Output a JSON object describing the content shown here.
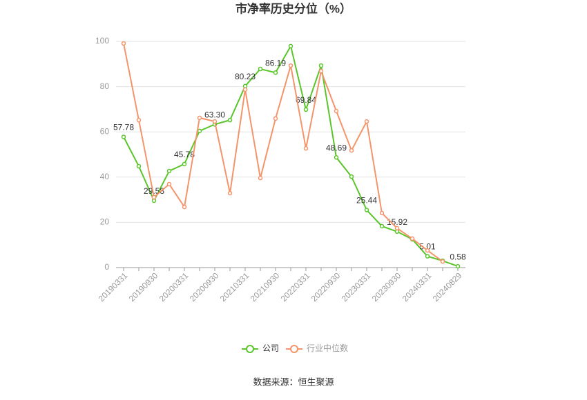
{
  "chart_data": {
    "type": "line",
    "title": "市净率历史分位（%）",
    "categories": [
      "20190331",
      null,
      "20190930",
      null,
      "20200331",
      null,
      "20200930",
      null,
      "20210331",
      null,
      "20210930",
      null,
      "20220331",
      null,
      "20220930",
      null,
      "20230331",
      null,
      "20230930",
      null,
      "20240331",
      null,
      "20240829"
    ],
    "series": [
      {
        "name": "公司",
        "color": "#5ac52a",
        "values": [
          57.78,
          44.8,
          29.58,
          42.7,
          45.78,
          60.4,
          63.3,
          65.2,
          80.23,
          87.8,
          86.19,
          97.9,
          69.84,
          89.3,
          48.69,
          40.2,
          25.44,
          18.3,
          15.92,
          12.5,
          5.01,
          3.0,
          0.58
        ],
        "value_labels": [
          "57.78",
          null,
          "29.58",
          null,
          "45.78",
          null,
          "63.30",
          null,
          "80.23",
          null,
          "86.19",
          null,
          "69.84",
          null,
          "48.69",
          null,
          "25.44",
          null,
          "15.92",
          null,
          "5.01",
          null,
          "0.58"
        ]
      },
      {
        "name": "行业中位数",
        "color": "#f4946a",
        "values": [
          99.1,
          65.2,
          31.1,
          36.9,
          26.8,
          66.2,
          64.6,
          32.9,
          78.7,
          39.6,
          65.9,
          89.3,
          52.7,
          86.9,
          69.2,
          51.8,
          64.6,
          24.1,
          17.4,
          12.8,
          7.6,
          2.7,
          null
        ]
      }
    ],
    "ylim": [
      0,
      100
    ],
    "yticks": [
      0,
      20,
      40,
      60,
      80,
      100
    ],
    "grid": true,
    "legend": "bottom",
    "source": "数据来源：恒生聚源"
  }
}
